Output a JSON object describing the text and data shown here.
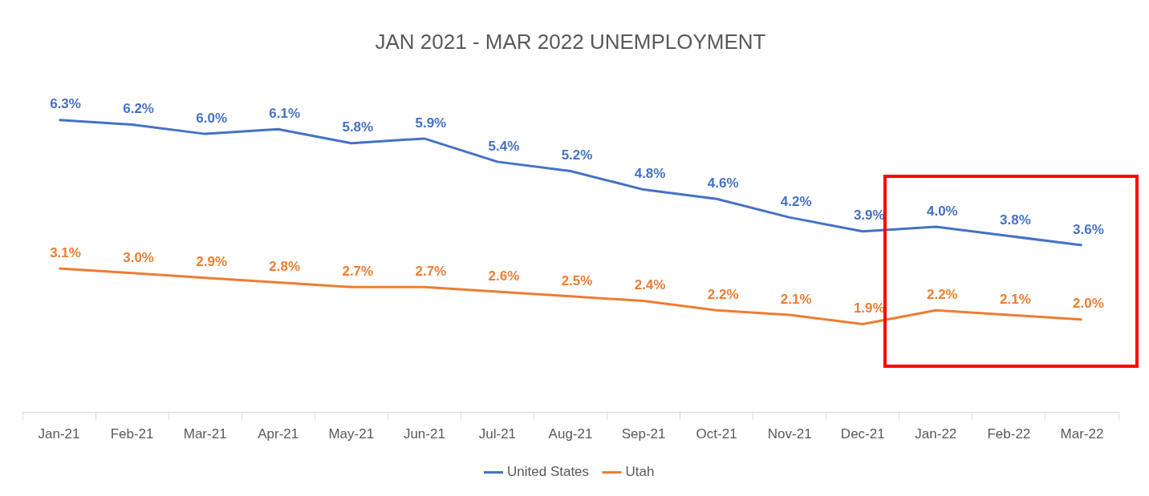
{
  "chart_data": {
    "type": "line",
    "title": "JAN 2021 - MAR 2022 UNEMPLOYMENT",
    "categories": [
      "Jan-21",
      "Feb-21",
      "Mar-21",
      "Apr-21",
      "May-21",
      "Jun-21",
      "Jul-21",
      "Aug-21",
      "Sep-21",
      "Oct-21",
      "Nov-21",
      "Dec-21",
      "Jan-22",
      "Feb-22",
      "Mar-22"
    ],
    "series": [
      {
        "name": "United States",
        "color": "#4472c4",
        "values": [
          6.3,
          6.2,
          6.0,
          6.1,
          5.8,
          5.9,
          5.4,
          5.2,
          4.8,
          4.6,
          4.2,
          3.9,
          4.0,
          3.8,
          3.6
        ],
        "value_labels": [
          "6.3%",
          "6.2%",
          "6.0%",
          "6.1%",
          "5.8%",
          "5.9%",
          "5.4%",
          "5.2%",
          "4.8%",
          "4.6%",
          "4.2%",
          "3.9%",
          "4.0%",
          "3.8%",
          "3.6%"
        ]
      },
      {
        "name": "Utah",
        "color": "#ed7d31",
        "values": [
          3.1,
          3.0,
          2.9,
          2.8,
          2.7,
          2.7,
          2.6,
          2.5,
          2.4,
          2.2,
          2.1,
          1.9,
          2.2,
          2.1,
          2.0
        ],
        "value_labels": [
          "3.1%",
          "3.0%",
          "2.9%",
          "2.8%",
          "2.7%",
          "2.7%",
          "2.6%",
          "2.5%",
          "2.4%",
          "2.2%",
          "2.1%",
          "1.9%",
          "2.2%",
          "2.1%",
          "2.0%"
        ]
      }
    ],
    "grid": false,
    "legend": "bottom",
    "marker": "none",
    "line_style": "solid"
  }
}
